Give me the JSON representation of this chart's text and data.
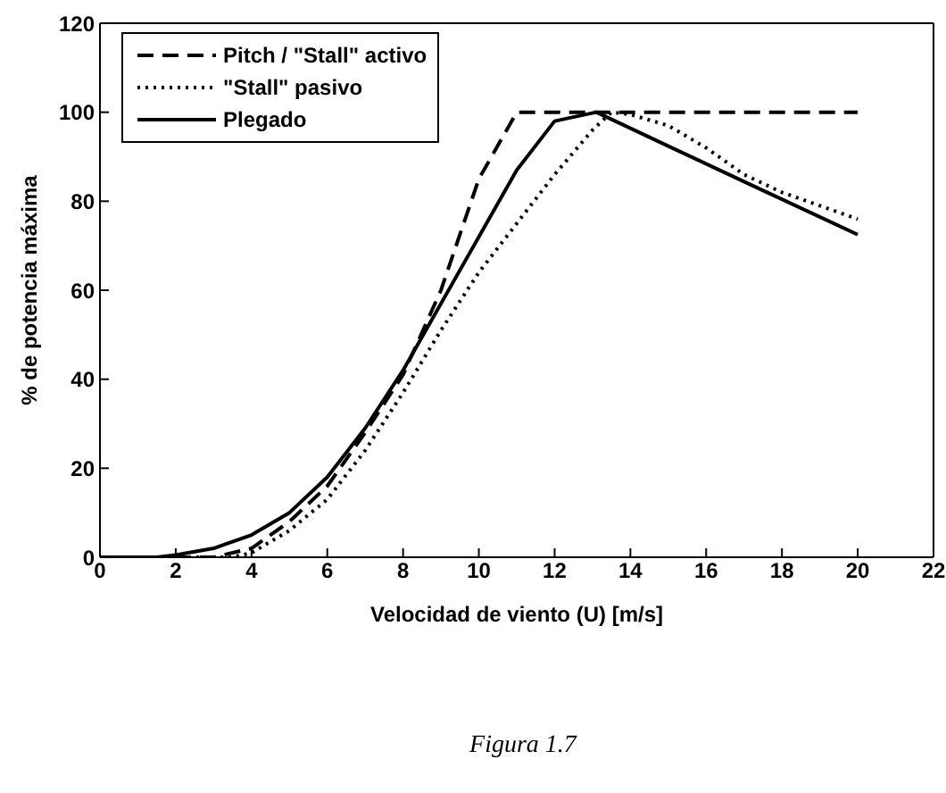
{
  "chart_data": {
    "type": "line",
    "xlabel": "Velocidad de viento (U)  [m/s]",
    "ylabel": "% de potencia máxima",
    "annotations": [
      "Figura 1.7"
    ],
    "xlim": [
      0,
      22
    ],
    "xticks": [
      0,
      2,
      4,
      6,
      8,
      10,
      12,
      14,
      16,
      18,
      20,
      22
    ],
    "ylim": [
      0,
      120
    ],
    "yticks": [
      0,
      20,
      40,
      60,
      80,
      100,
      120
    ],
    "grid": false,
    "legend": "top left",
    "marker": "none",
    "series": [
      {
        "name": "Pitch / \"Stall\" activo",
        "color": "#000000",
        "line_style": "dashed",
        "x": [
          0,
          3,
          4,
          5,
          6,
          7,
          8,
          9,
          10,
          11,
          20
        ],
        "values": [
          0,
          0,
          2,
          8,
          16,
          28,
          41,
          60,
          85,
          100,
          100
        ]
      },
      {
        "name": "\"Stall\" pasivo",
        "color": "#000000",
        "line_style": "dotted",
        "x": [
          0,
          3.5,
          4,
          5,
          6,
          7,
          8,
          9,
          10,
          11,
          12,
          13,
          13.5,
          14,
          15,
          16,
          17,
          18,
          19,
          20
        ],
        "values": [
          0,
          0,
          1,
          6,
          13,
          24,
          37,
          51,
          64,
          75,
          86,
          96,
          100,
          99.5,
          97,
          92,
          86,
          82,
          79,
          76
        ]
      },
      {
        "name": "Plegado",
        "color": "#000000",
        "line_style": "solid",
        "x": [
          0,
          1.5,
          2,
          3,
          4,
          5,
          6,
          7,
          8,
          9,
          10,
          11,
          12,
          13.1,
          17.1,
          20
        ],
        "values": [
          0,
          0,
          0.5,
          2,
          5,
          10,
          18,
          29,
          42,
          57,
          72,
          87,
          98,
          100,
          84,
          72.5
        ]
      }
    ]
  }
}
